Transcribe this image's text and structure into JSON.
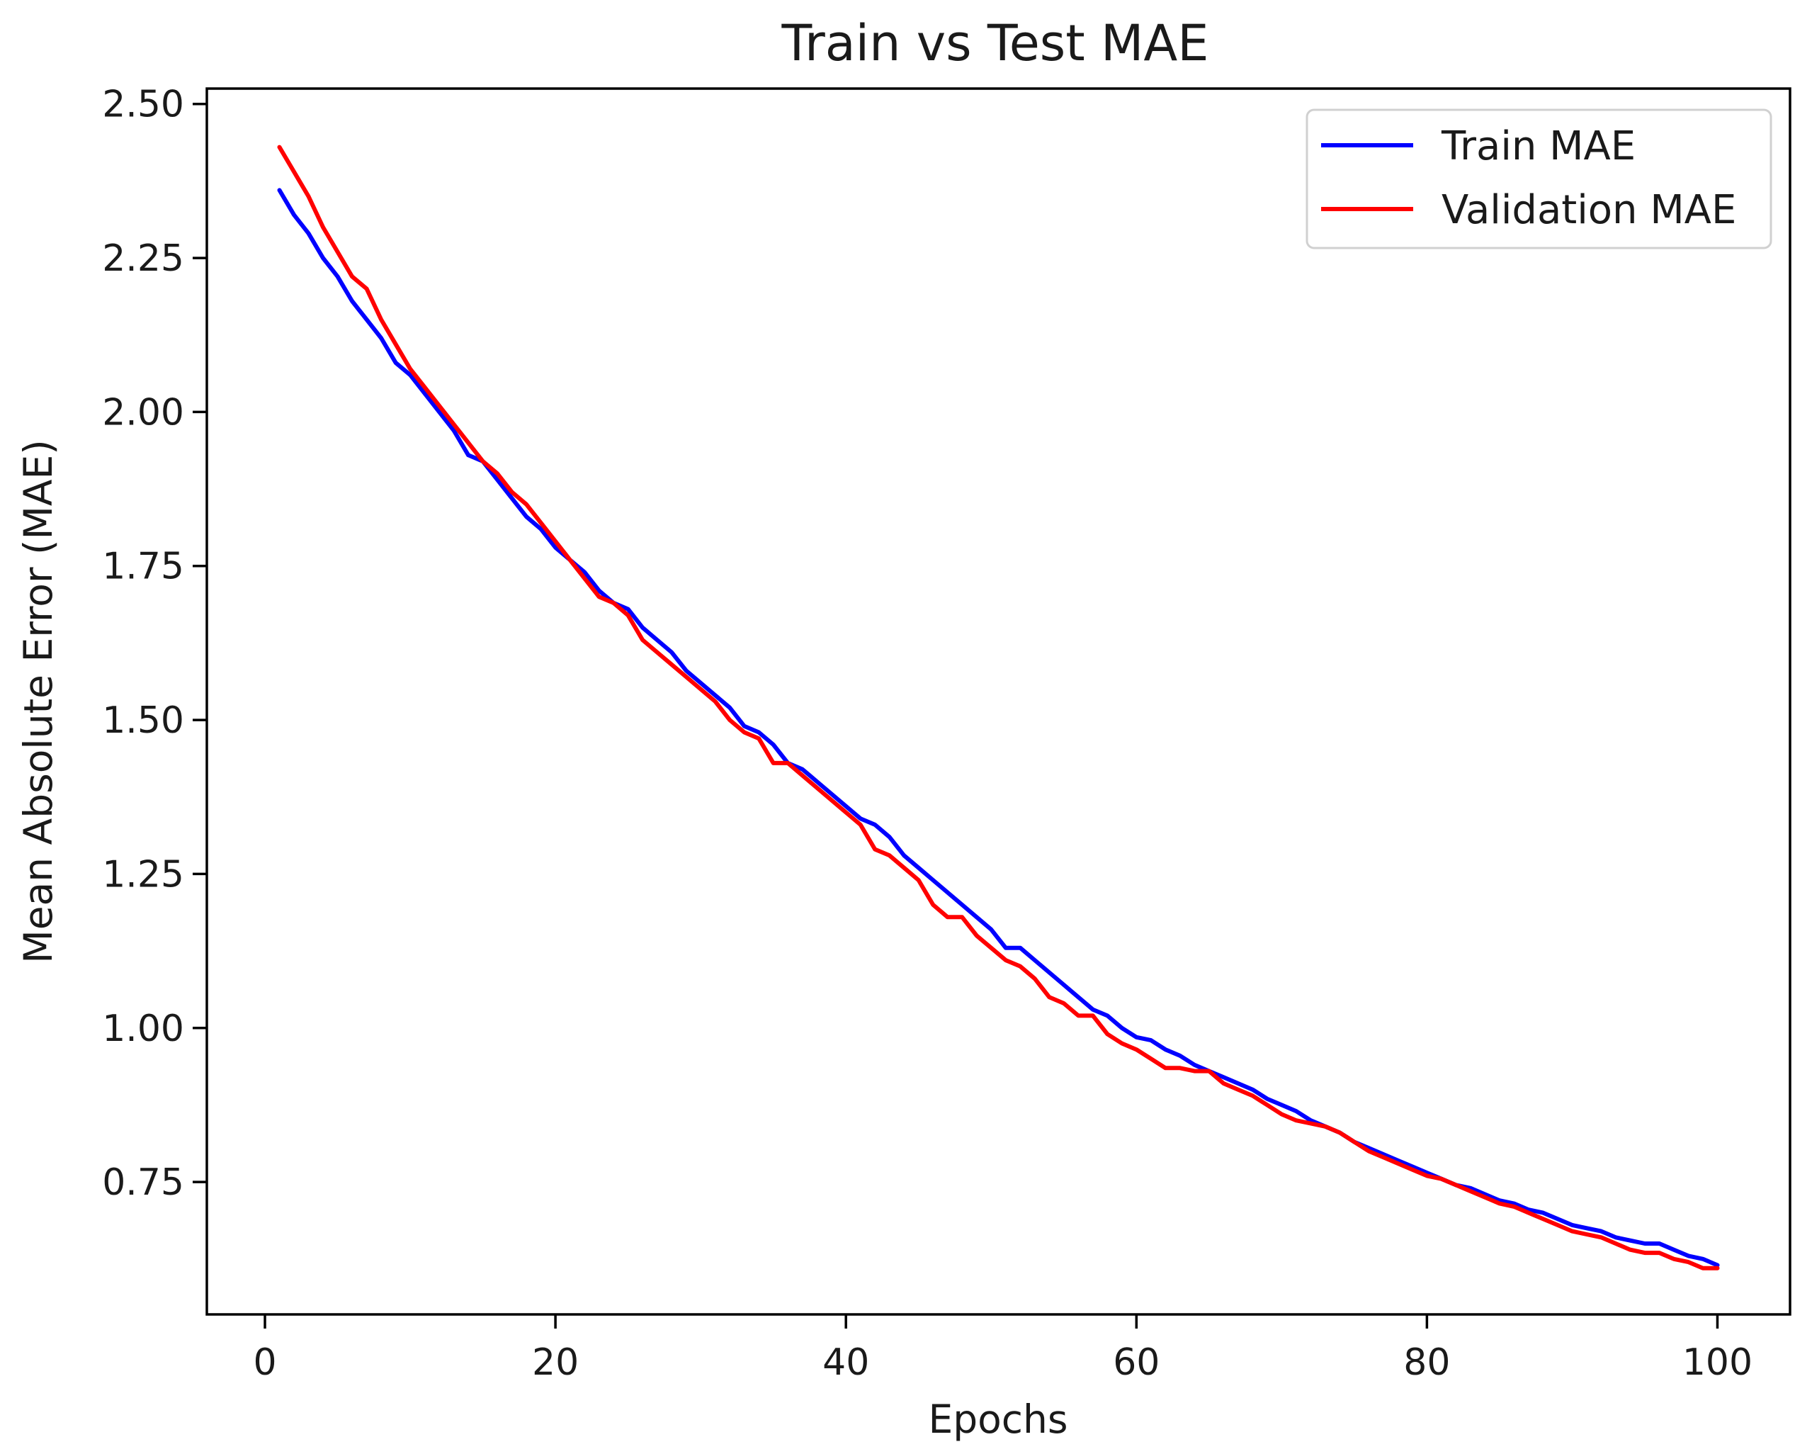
{
  "chart_data": {
    "type": "line",
    "title": "Train vs Test MAE",
    "xlabel": "Epochs",
    "ylabel": "Mean Absolute Error (MAE)",
    "xlim": [
      -4,
      105
    ],
    "ylim": [
      0.535,
      2.525
    ],
    "xticks": [
      0,
      20,
      40,
      60,
      80,
      100
    ],
    "xtick_labels": [
      "0",
      "20",
      "40",
      "60",
      "80",
      "100"
    ],
    "yticks": [
      0.75,
      1.0,
      1.25,
      1.5,
      1.75,
      2.0,
      2.25,
      2.5
    ],
    "ytick_labels": [
      "0.75",
      "1.00",
      "1.25",
      "1.50",
      "1.75",
      "2.00",
      "2.25",
      "2.50"
    ],
    "grid": false,
    "legend_position": "top-right",
    "x": [
      1,
      2,
      3,
      4,
      5,
      6,
      7,
      8,
      9,
      10,
      11,
      12,
      13,
      14,
      15,
      16,
      17,
      18,
      19,
      20,
      21,
      22,
      23,
      24,
      25,
      26,
      27,
      28,
      29,
      30,
      31,
      32,
      33,
      34,
      35,
      36,
      37,
      38,
      39,
      40,
      41,
      42,
      43,
      44,
      45,
      46,
      47,
      48,
      49,
      50,
      51,
      52,
      53,
      54,
      55,
      56,
      57,
      58,
      59,
      60,
      61,
      62,
      63,
      64,
      65,
      66,
      67,
      68,
      69,
      70,
      71,
      72,
      73,
      74,
      75,
      76,
      77,
      78,
      79,
      80,
      81,
      82,
      83,
      84,
      85,
      86,
      87,
      88,
      89,
      90,
      91,
      92,
      93,
      94,
      95,
      96,
      97,
      98,
      99,
      100
    ],
    "series": [
      {
        "name": "Train MAE",
        "color": "#0000ff",
        "values": [
          2.36,
          2.32,
          2.29,
          2.25,
          2.22,
          2.18,
          2.15,
          2.12,
          2.08,
          2.06,
          2.03,
          2.0,
          1.97,
          1.93,
          1.92,
          1.89,
          1.86,
          1.83,
          1.81,
          1.78,
          1.76,
          1.74,
          1.71,
          1.69,
          1.68,
          1.65,
          1.63,
          1.61,
          1.58,
          1.56,
          1.54,
          1.52,
          1.49,
          1.48,
          1.46,
          1.43,
          1.42,
          1.4,
          1.38,
          1.36,
          1.34,
          1.33,
          1.31,
          1.28,
          1.26,
          1.24,
          1.22,
          1.2,
          1.18,
          1.16,
          1.13,
          1.13,
          1.11,
          1.09,
          1.07,
          1.05,
          1.03,
          1.02,
          1.0,
          0.985,
          0.98,
          0.965,
          0.955,
          0.94,
          0.93,
          0.92,
          0.91,
          0.9,
          0.885,
          0.875,
          0.865,
          0.85,
          0.84,
          0.83,
          0.815,
          0.805,
          0.795,
          0.785,
          0.775,
          0.765,
          0.755,
          0.745,
          0.74,
          0.73,
          0.72,
          0.715,
          0.705,
          0.7,
          0.69,
          0.68,
          0.675,
          0.67,
          0.66,
          0.655,
          0.65,
          0.65,
          0.64,
          0.63,
          0.625,
          0.615
        ]
      },
      {
        "name": "Validation MAE",
        "color": "#ff0000",
        "values": [
          2.43,
          2.39,
          2.35,
          2.3,
          2.26,
          2.22,
          2.2,
          2.15,
          2.11,
          2.07,
          2.04,
          2.01,
          1.98,
          1.95,
          1.92,
          1.9,
          1.87,
          1.85,
          1.82,
          1.79,
          1.76,
          1.73,
          1.7,
          1.69,
          1.67,
          1.63,
          1.61,
          1.59,
          1.57,
          1.55,
          1.53,
          1.5,
          1.48,
          1.47,
          1.43,
          1.43,
          1.41,
          1.39,
          1.37,
          1.35,
          1.33,
          1.29,
          1.28,
          1.26,
          1.24,
          1.2,
          1.18,
          1.18,
          1.15,
          1.13,
          1.11,
          1.1,
          1.08,
          1.05,
          1.04,
          1.02,
          1.02,
          0.99,
          0.975,
          0.965,
          0.95,
          0.935,
          0.935,
          0.93,
          0.93,
          0.91,
          0.9,
          0.89,
          0.875,
          0.86,
          0.85,
          0.845,
          0.84,
          0.83,
          0.815,
          0.8,
          0.79,
          0.78,
          0.77,
          0.76,
          0.755,
          0.745,
          0.735,
          0.725,
          0.715,
          0.71,
          0.7,
          0.69,
          0.68,
          0.67,
          0.665,
          0.66,
          0.65,
          0.64,
          0.635,
          0.635,
          0.625,
          0.62,
          0.61,
          0.61
        ]
      }
    ]
  }
}
